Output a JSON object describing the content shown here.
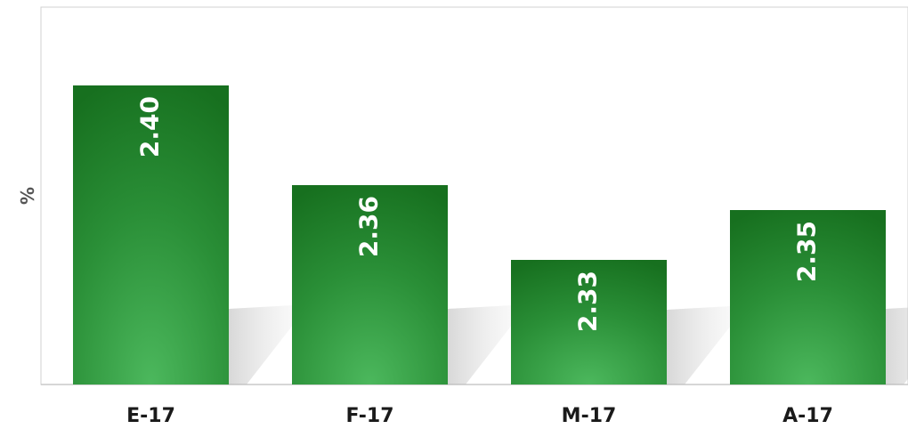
{
  "chart_data": {
    "type": "bar",
    "title": "",
    "xlabel": "",
    "ylabel": "%",
    "categories": [
      "E-17",
      "F-17",
      "M-17",
      "A-17"
    ],
    "values": [
      2.4,
      2.36,
      2.33,
      2.35
    ],
    "value_labels": [
      "2.40",
      "2.36",
      "2.33",
      "2.35"
    ],
    "ylim": [
      2.28,
      2.41
    ],
    "grid": false,
    "legend": "none",
    "colors": {
      "bar_dark": "#17701f",
      "bar_light": "#4cb85d",
      "label": "#ffffff",
      "axis": "#c8c8c8"
    }
  }
}
